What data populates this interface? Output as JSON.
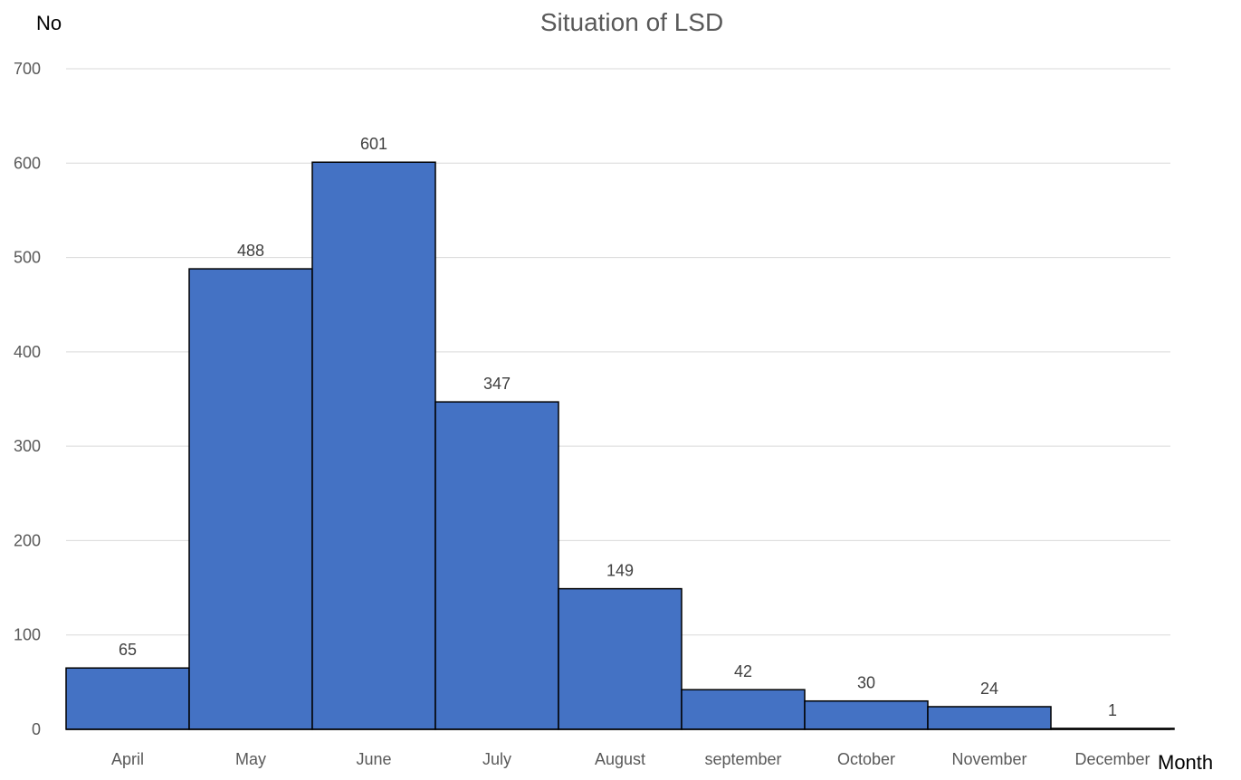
{
  "chart_data": {
    "type": "bar",
    "title": "Situation of LSD",
    "ylabel": "No",
    "xlabel": "Month",
    "categories": [
      "April",
      "May",
      "June",
      "July",
      "August",
      "september",
      "October",
      "November",
      "December"
    ],
    "values": [
      65,
      488,
      601,
      347,
      149,
      42,
      30,
      24,
      1
    ],
    "data_labels": [
      "65",
      "488",
      "601",
      "347",
      "149",
      "42",
      "30",
      "24",
      "1"
    ],
    "ylim": [
      0,
      700
    ],
    "yticks": [
      0,
      100,
      200,
      300,
      400,
      500,
      600,
      700
    ],
    "ytick_labels": [
      "0",
      "100",
      "200",
      "300",
      "400",
      "500",
      "600",
      "700"
    ],
    "grid": true,
    "legend": "none",
    "bar_color": "#4472C4",
    "bar_outline_color": "#000000",
    "gridline_color": "#D9D9D9"
  }
}
